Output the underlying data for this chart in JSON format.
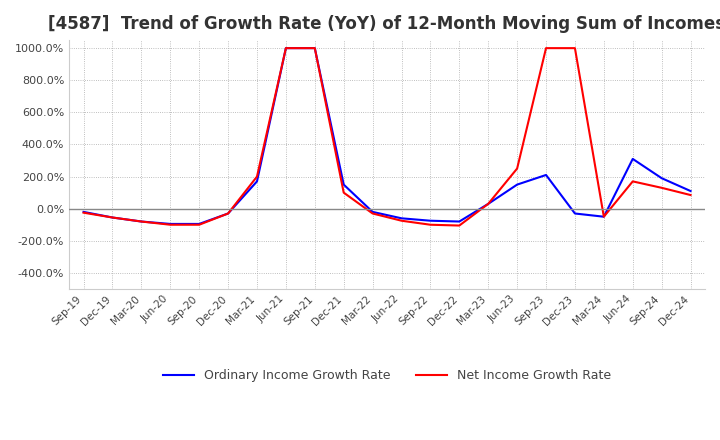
{
  "title": "[4587]  Trend of Growth Rate (YoY) of 12-Month Moving Sum of Incomes",
  "title_fontsize": 12,
  "ylim": [
    -500,
    1050
  ],
  "yticks": [
    -400,
    -200,
    0,
    200,
    400,
    600,
    800,
    1000
  ],
  "ytick_labels": [
    "-400.0%",
    "-200.0%",
    "0.0%",
    "200.0%",
    "400.0%",
    "600.0%",
    "800.0%",
    "1000.0%"
  ],
  "background_color": "#ffffff",
  "plot_bg_color": "#ffffff",
  "grid_color": "#aaaaaa",
  "legend_labels": [
    "Ordinary Income Growth Rate",
    "Net Income Growth Rate"
  ],
  "legend_colors": [
    "#0000ff",
    "#ff0000"
  ],
  "x_tick_labels": [
    "Sep-19",
    "Dec-19",
    "Mar-20",
    "Jun-20",
    "Sep-20",
    "Dec-20",
    "Mar-21",
    "Jun-21",
    "Sep-21",
    "Dec-21",
    "Mar-22",
    "Jun-22",
    "Sep-22",
    "Dec-22",
    "Mar-23",
    "Jun-23",
    "Sep-23",
    "Dec-23",
    "Mar-24",
    "Jun-24",
    "Sep-24",
    "Dec-24"
  ],
  "ordinary_income": [
    -20,
    -55,
    -80,
    -95,
    -95,
    -30,
    170,
    1000,
    1000,
    150,
    -20,
    -60,
    -75,
    -80,
    30,
    150,
    210,
    -30,
    -50,
    310,
    190,
    110
  ],
  "net_income": [
    -25,
    -55,
    -80,
    -100,
    -100,
    -30,
    200,
    1000,
    1000,
    100,
    -30,
    -75,
    -100,
    -105,
    30,
    250,
    1000,
    1000,
    -50,
    170,
    130,
    85
  ]
}
